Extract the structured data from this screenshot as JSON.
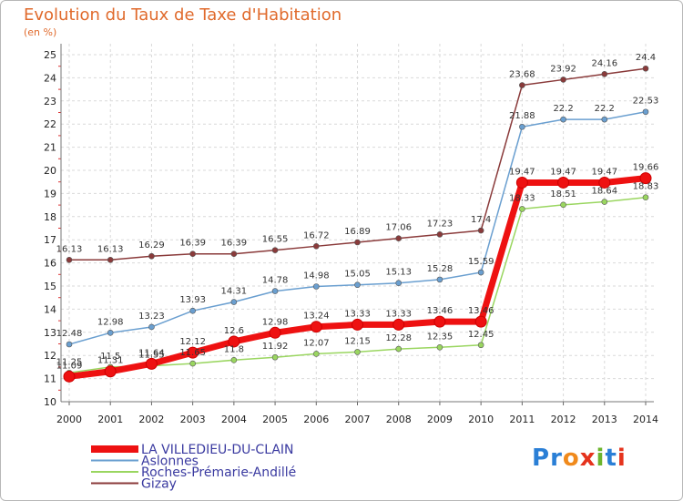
{
  "title": "Evolution du Taux de Taxe d'Habitation",
  "subtitle": "(en %)",
  "logo": {
    "text": "Proxiti",
    "colors": [
      "#2a7fd6",
      "#2a7fd6",
      "#f08a1c",
      "#e5331d",
      "#6cb52d",
      "#2a7fd6",
      "#e5331d"
    ]
  },
  "chart_data": {
    "type": "line",
    "x": [
      2000,
      2001,
      2002,
      2003,
      2004,
      2005,
      2006,
      2007,
      2008,
      2009,
      2010,
      2011,
      2012,
      2013,
      2014
    ],
    "ylim": [
      10,
      25
    ],
    "yticks": [
      10,
      11,
      12,
      13,
      14,
      15,
      16,
      17,
      18,
      19,
      20,
      21,
      22,
      23,
      24,
      25
    ],
    "grid": true,
    "series": [
      {
        "name": "LA VILLEDIEU-DU-CLAIN",
        "color": "#ee1111",
        "values": [
          11.09,
          11.31,
          11.64,
          12.12,
          12.6,
          12.98,
          13.24,
          13.33,
          13.33,
          13.46,
          13.46,
          19.47,
          19.47,
          19.47,
          19.66
        ],
        "labels": [
          "11.09",
          "11.31",
          "11.64",
          "12.12",
          "12.6",
          "12.98",
          "13.24",
          "13.33",
          "13.33",
          "13.46",
          "13.46",
          "19.47",
          "19.47",
          "19.47",
          "19.66"
        ]
      },
      {
        "name": "Aslonnes",
        "color": "#6a9fd0",
        "values": [
          12.48,
          12.98,
          13.23,
          13.93,
          14.31,
          14.78,
          14.98,
          15.05,
          15.13,
          15.28,
          15.59,
          21.88,
          22.2,
          22.2,
          22.53
        ],
        "labels": [
          "12.48",
          "12.98",
          "13.23",
          "13.93",
          "14.31",
          "14.78",
          "14.98",
          "15.05",
          "15.13",
          "15.28",
          "15.59",
          "21.88",
          "22.2",
          "22.2",
          "22.53"
        ]
      },
      {
        "name": "Roches-Prémarie-Andillé",
        "color": "#9ad660",
        "values": [
          11.25,
          11.5,
          11.55,
          11.65,
          11.8,
          11.92,
          12.07,
          12.15,
          12.28,
          12.35,
          12.45,
          18.33,
          18.51,
          18.64,
          18.83
        ],
        "labels": [
          "11.25",
          "11.5",
          "11.55",
          "11.65",
          "11.8",
          "11.92",
          "12.07",
          "12.15",
          "12.28",
          "12.35",
          "12.45",
          "18.33",
          "18.51",
          "18.64",
          "18.83"
        ]
      },
      {
        "name": "Gizay",
        "color": "#8a3a3a",
        "values": [
          16.13,
          16.13,
          16.29,
          16.39,
          16.39,
          16.55,
          16.72,
          16.89,
          17.06,
          17.23,
          17.4,
          23.68,
          23.92,
          24.16,
          24.4
        ],
        "labels": [
          "16.13",
          "16.13",
          "16.29",
          "16.39",
          "16.39",
          "16.55",
          "16.72",
          "16.89",
          "17.06",
          "17.23",
          "17.4",
          "23.68",
          "23.92",
          "24.16",
          "24.4"
        ]
      }
    ],
    "legend_position": "bottom-left"
  }
}
